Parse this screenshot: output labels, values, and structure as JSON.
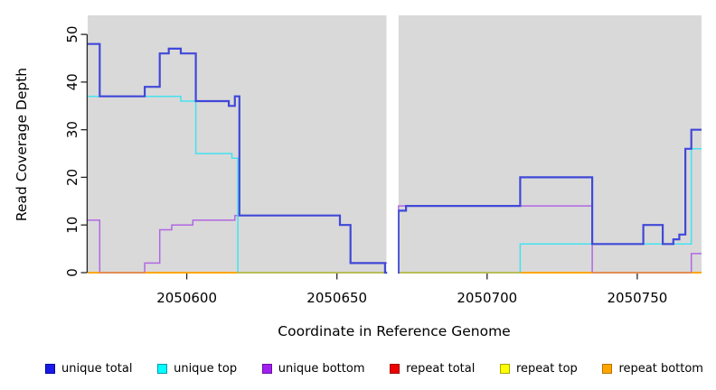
{
  "chart_data": {
    "type": "line",
    "subtype": "step-coverage-plot",
    "title": "",
    "xlabel": "Coordinate in Reference Genome",
    "ylabel": "Read Coverage Depth",
    "x_ticks": [
      2050600,
      2050650,
      2050700,
      2050750
    ],
    "x_tick_labels": [
      "2050600",
      "2050650",
      "2050700",
      "2050750"
    ],
    "y_ticks": [
      0,
      10,
      20,
      30,
      40,
      50
    ],
    "xlim": [
      2050567,
      2050771.4
    ],
    "ylim": [
      0,
      54
    ],
    "gap_x": [
      2050666.5,
      2050670.5
    ],
    "grid": false,
    "panel_bg": "#D9D9D9",
    "legend_position": "bottom",
    "series": [
      {
        "name": "unique total",
        "color": "#4048D8",
        "width": 2.2,
        "segments": [
          [
            2050567,
            2050571,
            48
          ],
          [
            2050571,
            2050586,
            37
          ],
          [
            2050586,
            2050591,
            39
          ],
          [
            2050591,
            2050594,
            46
          ],
          [
            2050594,
            2050598,
            47
          ],
          [
            2050598,
            2050603,
            46
          ],
          [
            2050603,
            2050614,
            36
          ],
          [
            2050614,
            2050616,
            35
          ],
          [
            2050616,
            2050617.5,
            37
          ],
          [
            2050617.5,
            2050651,
            12
          ],
          [
            2050651,
            2050654.5,
            10
          ],
          [
            2050654.5,
            2050666,
            2
          ],
          [
            2050666,
            2050666.5,
            0
          ],
          [
            2050670.5,
            2050673,
            13
          ],
          [
            2050673,
            2050711,
            14
          ],
          [
            2050711,
            2050735,
            20
          ],
          [
            2050735,
            2050752,
            6
          ],
          [
            2050752,
            2050758.5,
            10
          ],
          [
            2050758.5,
            2050762,
            6
          ],
          [
            2050762,
            2050764,
            7
          ],
          [
            2050764,
            2050766,
            8
          ],
          [
            2050766,
            2050768,
            26
          ],
          [
            2050768,
            2050771.4,
            30
          ]
        ]
      },
      {
        "name": "unique top",
        "color": "#45E2F0",
        "width": 1.5,
        "segments": [
          [
            2050567,
            2050598,
            37
          ],
          [
            2050598,
            2050603,
            36
          ],
          [
            2050603,
            2050615,
            25
          ],
          [
            2050615,
            2050617,
            24
          ],
          [
            2050617,
            2050666.5,
            0
          ],
          [
            2050670.5,
            2050711,
            0
          ],
          [
            2050711,
            2050768,
            6
          ],
          [
            2050768,
            2050771.4,
            26
          ]
        ]
      },
      {
        "name": "unique bottom",
        "color": "#B168E2",
        "width": 1.5,
        "segments": [
          [
            2050567,
            2050571,
            11
          ],
          [
            2050571,
            2050586,
            0
          ],
          [
            2050586,
            2050591,
            2
          ],
          [
            2050591,
            2050595,
            9
          ],
          [
            2050595,
            2050602,
            10
          ],
          [
            2050602,
            2050616,
            11
          ],
          [
            2050616,
            2050651,
            12
          ],
          [
            2050651,
            2050654.5,
            10
          ],
          [
            2050654.5,
            2050666.5,
            2
          ],
          [
            2050670.5,
            2050735,
            14
          ],
          [
            2050735,
            2050768,
            0
          ],
          [
            2050768,
            2050771.4,
            4
          ]
        ]
      },
      {
        "name": "repeat total",
        "color": "#E02020",
        "width": 1.5,
        "segments": [
          [
            2050567,
            2050666.5,
            0
          ],
          [
            2050670.5,
            2050771.4,
            0
          ]
        ]
      },
      {
        "name": "repeat top",
        "color": "#FFE800",
        "width": 1.5,
        "segments": [
          [
            2050567,
            2050666.5,
            0
          ],
          [
            2050670.5,
            2050771.4,
            0
          ]
        ]
      },
      {
        "name": "repeat bottom",
        "color": "#FFA500",
        "width": 2,
        "segments": [
          [
            2050567,
            2050666.5,
            0
          ],
          [
            2050670.5,
            2050771.4,
            0
          ]
        ]
      }
    ],
    "draw_order": [
      3,
      4,
      5,
      2,
      1,
      5,
      0
    ],
    "overlay_opacity": 0.5
  },
  "legend": {
    "items": [
      {
        "label": "unique total",
        "fill": "#1A1AE8",
        "border": "#0000A0"
      },
      {
        "label": "unique top",
        "fill": "#00FFFF",
        "border": "#0098AC"
      },
      {
        "label": "unique bottom",
        "fill": "#A020F0",
        "border": "#6A10A0"
      },
      {
        "label": "repeat total",
        "fill": "#EE0000",
        "border": "#A00000"
      },
      {
        "label": "repeat top",
        "fill": "#FFFF00",
        "border": "#A8A800"
      },
      {
        "label": "repeat bottom",
        "fill": "#FFA500",
        "border": "#B87400"
      }
    ]
  }
}
